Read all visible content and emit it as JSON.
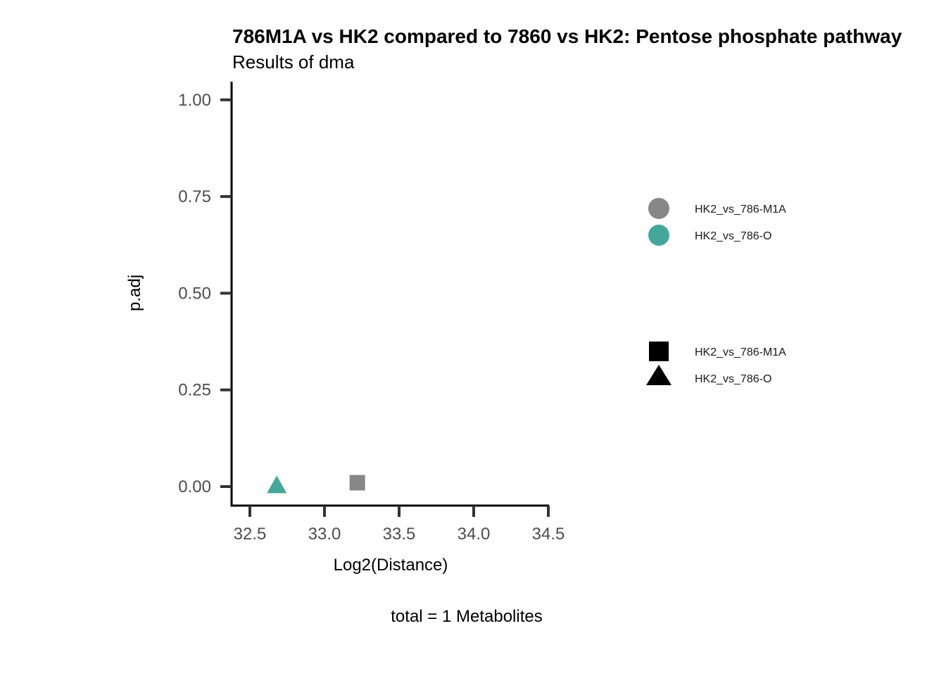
{
  "title": "786M1A vs HK2 compared to 7860 vs HK2: Pentose phosphate pathway",
  "subtitle": "Results of dma",
  "caption": "total = 1 Metabolites",
  "colors": {
    "HK2_vs_786-M1A": "#878787",
    "HK2_vs_786-O": "#45a79a",
    "axis": "#000000",
    "tick": "#333333",
    "legend_shape": "#000000"
  },
  "chart_data": {
    "type": "scatter",
    "title": "786M1A vs HK2 compared to 7860 vs HK2: Pentose phosphate pathway",
    "subtitle": "Results of dma",
    "xlabel": "Log2(Distance)",
    "ylabel": "p.adj",
    "xlim": [
      32.4,
      34.5
    ],
    "ylim": [
      -0.05,
      1.05
    ],
    "x_ticks": [
      32.5,
      33.0,
      33.5,
      34.0,
      34.5
    ],
    "x_tick_labels": [
      "32.5",
      "33.0",
      "33.5",
      "34.0",
      "34.5"
    ],
    "y_ticks": [
      0.0,
      0.25,
      0.5,
      0.75,
      1.0
    ],
    "y_tick_labels": [
      "0.00",
      "0.25",
      "0.50",
      "0.75",
      "1.00"
    ],
    "grid": false,
    "legend_placement": "right",
    "points": [
      {
        "series": "HK2_vs_786-O",
        "shape": "triangle",
        "x": 32.68,
        "y": 0.003
      },
      {
        "series": "HK2_vs_786-M1A",
        "shape": "square",
        "x": 33.22,
        "y": 0.01
      }
    ],
    "legend": {
      "color": [
        {
          "label": "HK2_vs_786-M1A",
          "color": "#878787"
        },
        {
          "label": "HK2_vs_786-O",
          "color": "#45a79a"
        }
      ],
      "shape": [
        {
          "label": "HK2_vs_786-M1A",
          "shape": "square"
        },
        {
          "label": "HK2_vs_786-O",
          "shape": "triangle"
        }
      ]
    }
  }
}
